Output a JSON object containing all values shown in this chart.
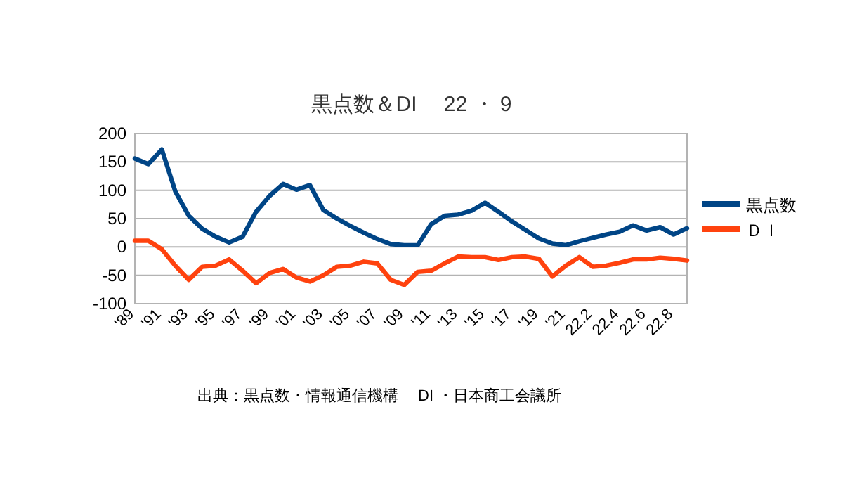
{
  "chart_data": {
    "type": "line",
    "title": "黒点数＆DI　 22 ・ 9",
    "categories": [
      "'89",
      null,
      "'91",
      null,
      "'93",
      null,
      "'95",
      null,
      "'97",
      null,
      "'99",
      null,
      "'01",
      null,
      "'03",
      null,
      "'05",
      null,
      "'07",
      null,
      "'09",
      null,
      "'11",
      null,
      "'13",
      null,
      "'15",
      null,
      "'17",
      null,
      "'19",
      null,
      "'21",
      null,
      "22.2",
      null,
      "22.4",
      null,
      "22.6",
      null,
      "22.8",
      null
    ],
    "series": [
      {
        "name": "黒点数",
        "color": "#004586",
        "values": [
          156,
          146,
          172,
          98,
          55,
          32,
          18,
          8,
          18,
          62,
          90,
          111,
          101,
          109,
          65,
          50,
          37,
          25,
          14,
          5,
          3,
          3,
          40,
          55,
          57,
          64,
          78,
          62,
          45,
          30,
          15,
          6,
          3,
          10,
          16,
          22,
          27,
          38,
          29,
          35,
          22,
          33
        ]
      },
      {
        "name": "ＤＩ",
        "color": "#ff420e",
        "values": [
          11,
          11,
          -4,
          -33,
          -58,
          -35,
          -33,
          -22,
          -42,
          -64,
          -46,
          -39,
          -54,
          -61,
          -50,
          -35,
          -33,
          -26,
          -29,
          -58,
          -67,
          -44,
          -42,
          -29,
          -17,
          -18,
          -18,
          -23,
          -18,
          -17,
          -21,
          -52,
          -33,
          -18,
          -35,
          -33,
          -28,
          -22,
          -22,
          -19,
          -21,
          -24
        ]
      }
    ],
    "ylim": [
      -100,
      200
    ],
    "yticks": [
      -100,
      -50,
      0,
      50,
      100,
      150,
      200
    ],
    "grid": "y",
    "legend": "right",
    "annotations": [
      "出典：黒点数・情報通信機構　 DI ・日本商工会議所"
    ]
  }
}
